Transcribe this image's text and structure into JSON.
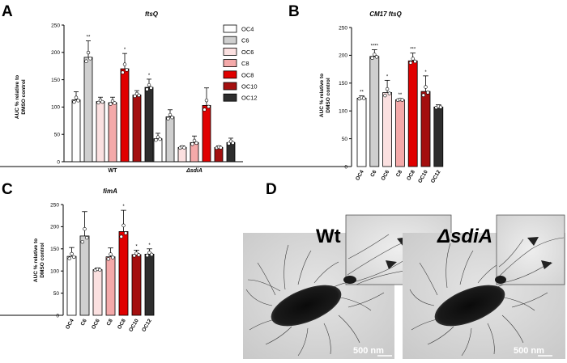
{
  "figure": {
    "colors": {
      "OC4": "#ffffff",
      "C6": "#cfcfcf",
      "OC6": "#fbe0e0",
      "C8": "#f4a9a9",
      "OC8": "#e00000",
      "OC10": "#a40f0f",
      "OC12": "#2d2d2d"
    }
  },
  "panels": {
    "A": {
      "label": "A"
    },
    "B": {
      "label": "B"
    },
    "C": {
      "label": "C"
    },
    "D": {
      "label": "D"
    }
  },
  "chart_data": [
    {
      "id": "A",
      "type": "bar",
      "title": "ftsQ",
      "ylabel_line1": "AUC % relative to",
      "ylabel_line2": "DMSO control",
      "ylim": [
        0,
        250
      ],
      "yticks": [
        "0",
        "50",
        "100",
        "150",
        "200",
        "250"
      ],
      "groups": [
        "WT",
        "ΔsdiA"
      ],
      "legend": [
        "OC4",
        "C6",
        "OC6",
        "C8",
        "OC8",
        "OC10",
        "OC12"
      ],
      "series": [
        {
          "name": "OC4",
          "values": [
            113,
            42
          ],
          "errors": [
            15,
            10
          ],
          "sig": [
            "",
            ""
          ]
        },
        {
          "name": "C6",
          "values": [
            191,
            82
          ],
          "errors": [
            30,
            13
          ],
          "sig": [
            "**",
            ""
          ]
        },
        {
          "name": "OC6",
          "values": [
            110,
            26
          ],
          "errors": [
            8,
            3
          ],
          "sig": [
            "",
            ""
          ]
        },
        {
          "name": "C8",
          "values": [
            108,
            35
          ],
          "errors": [
            10,
            12
          ],
          "sig": [
            "",
            ""
          ]
        },
        {
          "name": "OC8",
          "values": [
            170,
            103
          ],
          "errors": [
            28,
            32
          ],
          "sig": [
            "*",
            ""
          ]
        },
        {
          "name": "OC10",
          "values": [
            122,
            26
          ],
          "errors": [
            8,
            3
          ],
          "sig": [
            "",
            ""
          ]
        },
        {
          "name": "OC12",
          "values": [
            136,
            35
          ],
          "errors": [
            15,
            8
          ],
          "sig": [
            "*",
            ""
          ]
        }
      ]
    },
    {
      "id": "B",
      "type": "bar",
      "title": "CM17 ftsQ",
      "ylabel_line1": "AUC % relative to",
      "ylabel_line2": "DMSO control",
      "ylim": [
        0,
        250
      ],
      "yticks": [
        "0",
        "50",
        "100",
        "150",
        "200",
        "250"
      ],
      "categories": [
        "OC4",
        "C6",
        "OC6",
        "C8",
        "OC8",
        "OC10",
        "OC12"
      ],
      "values": [
        123,
        198,
        133,
        120,
        190,
        135,
        107
      ],
      "errors": [
        4,
        12,
        22,
        2,
        14,
        28,
        4
      ],
      "sig": [
        "**",
        "****",
        "*",
        "**",
        "***",
        "*",
        ""
      ]
    },
    {
      "id": "C",
      "type": "bar",
      "title": "fimA",
      "ylabel_line1": "AUC % relative to",
      "ylabel_line2": "DMSO control",
      "ylim": [
        0,
        250
      ],
      "yticks": [
        "0",
        "50",
        "100",
        "150",
        "200",
        "250"
      ],
      "categories": [
        "OC4",
        "C6",
        "OC6",
        "C8",
        "OC8",
        "OC10",
        "OC12"
      ],
      "values": [
        133,
        179,
        103,
        132,
        189,
        137,
        138
      ],
      "errors": [
        20,
        55,
        4,
        20,
        48,
        10,
        12
      ],
      "sig": [
        "",
        "",
        "",
        "",
        "*",
        "*",
        "*"
      ]
    }
  ],
  "micrographs": [
    {
      "strain": "Wt",
      "scale": "500 nm"
    },
    {
      "strain": "ΔsdiA",
      "scale": "500 nm"
    }
  ]
}
